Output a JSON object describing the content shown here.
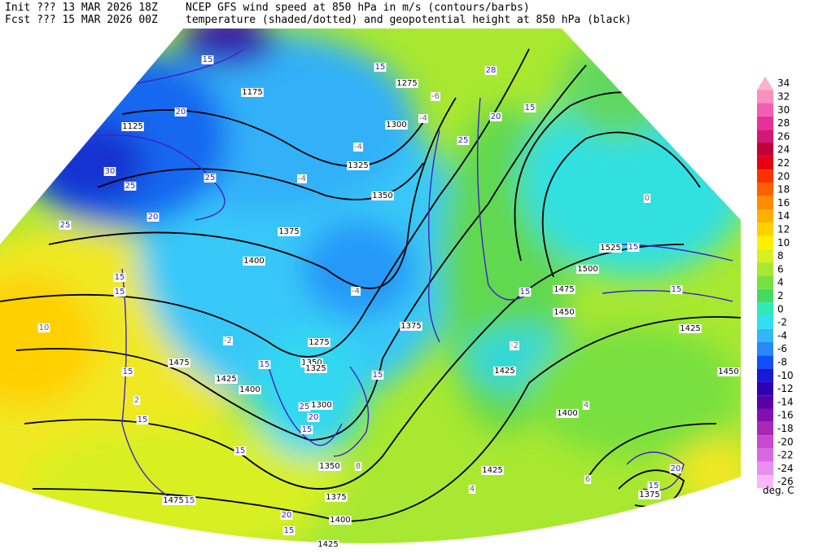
{
  "header": {
    "init": "Init  ??? 13 MAR 2026 18Z",
    "fcst": "Fcst ??? 15 MAR 2026 00Z",
    "line1": "NCEP GFS wind speed at 850 hPa in m/s (contours/barbs)",
    "line2": "temperature (shaded/dotted) and geopotential height at 850 hPa (black)"
  },
  "legend": {
    "unit": "deg. C",
    "levels": [
      {
        "value": 34,
        "color": "#f8b4c8"
      },
      {
        "value": 32,
        "color": "#f890c0"
      },
      {
        "value": 30,
        "color": "#f060b0"
      },
      {
        "value": 28,
        "color": "#e8309c"
      },
      {
        "value": 26,
        "color": "#d01874"
      },
      {
        "value": 24,
        "color": "#c00038"
      },
      {
        "value": 22,
        "color": "#e80010"
      },
      {
        "value": 20,
        "color": "#ff3000"
      },
      {
        "value": 18,
        "color": "#ff6000"
      },
      {
        "value": 16,
        "color": "#ff8c00"
      },
      {
        "value": 14,
        "color": "#ffb000"
      },
      {
        "value": 12,
        "color": "#ffd000"
      },
      {
        "value": 10,
        "color": "#fff000"
      },
      {
        "value": 8,
        "color": "#d8f020"
      },
      {
        "value": 6,
        "color": "#a8e830"
      },
      {
        "value": 4,
        "color": "#78e040"
      },
      {
        "value": 2,
        "color": "#48d860"
      },
      {
        "value": 0,
        "color": "#30e8b8"
      },
      {
        "value": -2,
        "color": "#30e0f0"
      },
      {
        "value": -4,
        "color": "#30b8f8"
      },
      {
        "value": -6,
        "color": "#2888f8"
      },
      {
        "value": -8,
        "color": "#1050f8"
      },
      {
        "value": -10,
        "color": "#1818d8"
      },
      {
        "value": -12,
        "color": "#3000b0"
      },
      {
        "value": -14,
        "color": "#5800a8"
      },
      {
        "value": -16,
        "color": "#8010b0"
      },
      {
        "value": -18,
        "color": "#a828b8"
      },
      {
        "value": -20,
        "color": "#c848d0"
      },
      {
        "value": -22,
        "color": "#d868e0"
      },
      {
        "value": -24,
        "color": "#e890f0"
      },
      {
        "value": -26,
        "color": "#f8b8f8"
      }
    ]
  },
  "map": {
    "height_labels": [
      1125,
      1175,
      1275,
      1300,
      1325,
      1350,
      1375,
      1400,
      1475,
      1425,
      1400,
      1350,
      1325,
      1300,
      1375,
      1275,
      1425,
      1400,
      1425,
      1450,
      1475,
      1500,
      1525,
      1425,
      1450,
      1375,
      1350,
      1375,
      1400,
      1475,
      1425
    ],
    "wind_labels": [
      15,
      20,
      25,
      30,
      25,
      20,
      25,
      15,
      15,
      15,
      15,
      15,
      15,
      15,
      20,
      25,
      15,
      15,
      28,
      20,
      25,
      15,
      15,
      15,
      15,
      20,
      15,
      20,
      15,
      15
    ],
    "temp_labels": [
      -4,
      -2,
      0,
      10,
      -6,
      -4,
      -2,
      4,
      4,
      6,
      8,
      -4,
      -4,
      2
    ]
  }
}
